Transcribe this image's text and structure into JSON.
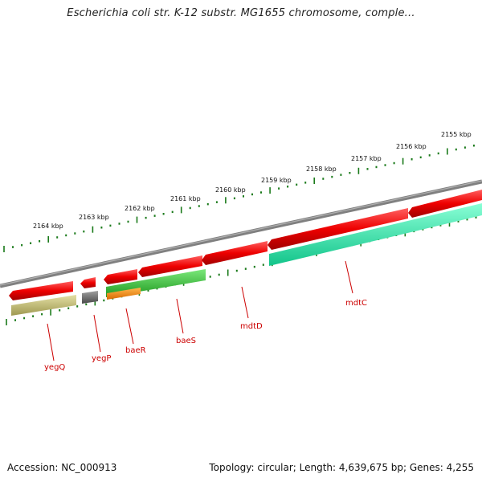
{
  "title": "Escherichia coli str. K-12 substr. MG1655 chromosome, comple...",
  "footer": {
    "accession": "Accession: NC_000913",
    "stats": "Topology: circular; Length: 4,639,675 bp; Genes: 4,255"
  },
  "colors": {
    "backbone": "#808080",
    "cds": "#ee0000",
    "gene_yegQ": "#c8c27a",
    "gene_yegP": "#707070",
    "gene_baeR": "#ff8c00",
    "gene_baeS": "#3cc83c",
    "gene_mdtC": "#22eea8",
    "tick": "#1a7a1a",
    "label": "#cc0000"
  },
  "kbp_labels": [
    "2155 kbp",
    "2156 kbp",
    "2157 kbp",
    "2158 kbp",
    "2159 kbp",
    "2160 kbp",
    "2161 kbp",
    "2162 kbp",
    "2163 kbp",
    "2164 kbp"
  ],
  "genes": [
    {
      "name": "yegQ"
    },
    {
      "name": "yegP"
    },
    {
      "name": "baeR"
    },
    {
      "name": "baeS"
    },
    {
      "name": "mdtD"
    },
    {
      "name": "mdtC"
    }
  ]
}
